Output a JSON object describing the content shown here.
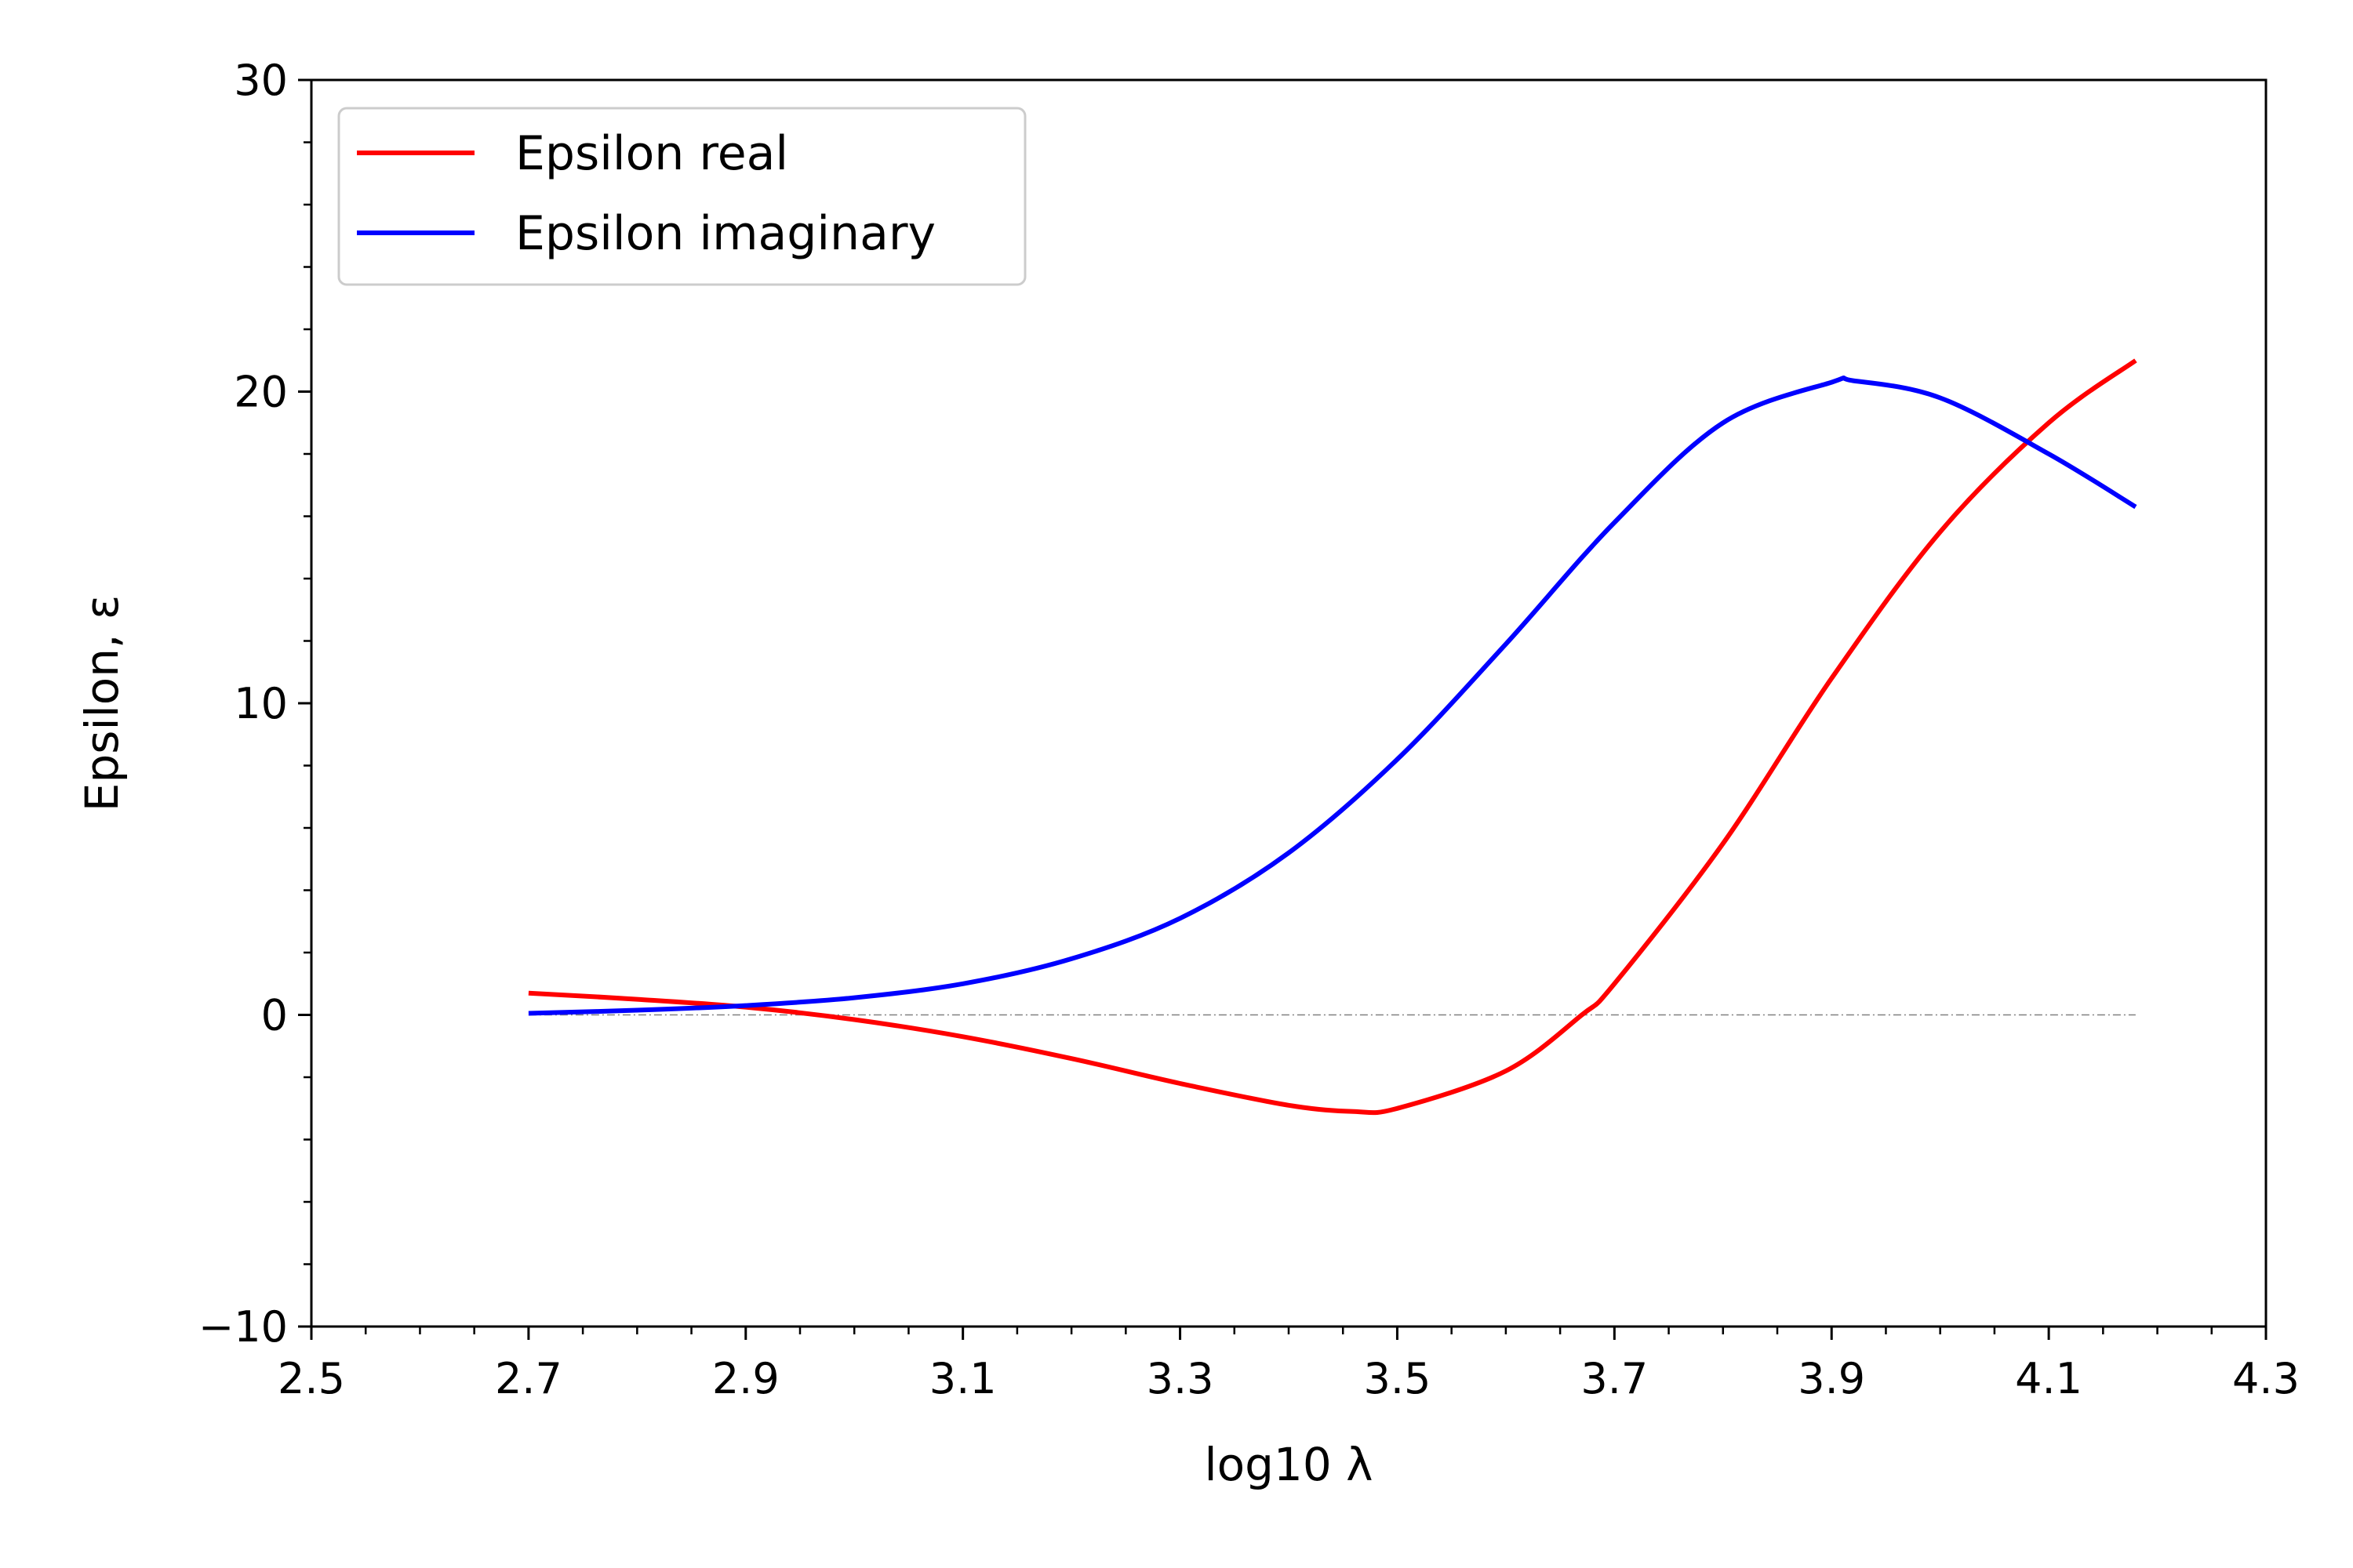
{
  "chart_data": {
    "type": "line",
    "xlabel": "log10 λ",
    "ylabel": "Epsilon, ε",
    "xlim": [
      2.5,
      4.3
    ],
    "ylim": [
      -10,
      30
    ],
    "x_ticks": [
      "2.5",
      "2.7",
      "2.9",
      "3.1",
      "3.3",
      "3.5",
      "3.7",
      "3.9",
      "4.1",
      "4.3"
    ],
    "y_ticks": [
      "−10",
      "0",
      "10",
      "20",
      "30"
    ],
    "grid": false,
    "legend_position": "top-left",
    "zero_line": {
      "y": 0,
      "x": [
        2.7,
        4.18
      ],
      "style": "dash-dot",
      "color": "#808080"
    },
    "series": [
      {
        "name": "Epsilon real",
        "color": "#ff0000",
        "x": [
          2.7,
          2.8,
          2.9,
          3.0,
          3.1,
          3.2,
          3.3,
          3.4,
          3.46,
          3.5,
          3.6,
          3.67,
          3.7,
          3.8,
          3.9,
          4.0,
          4.1,
          4.18
        ],
        "values": [
          0.7,
          0.5,
          0.25,
          -0.15,
          -0.7,
          -1.4,
          -2.2,
          -2.9,
          -3.1,
          -3.0,
          -1.8,
          0.0,
          1.0,
          5.5,
          10.8,
          15.5,
          19.0,
          21.0
        ]
      },
      {
        "name": "Epsilon imaginary",
        "color": "#0000ff",
        "x": [
          2.7,
          2.8,
          2.9,
          3.0,
          3.1,
          3.2,
          3.3,
          3.4,
          3.5,
          3.6,
          3.7,
          3.8,
          3.9,
          3.92,
          4.0,
          4.1,
          4.18
        ],
        "values": [
          0.05,
          0.15,
          0.3,
          0.55,
          1.0,
          1.8,
          3.1,
          5.2,
          8.2,
          11.9,
          15.8,
          19.0,
          20.3,
          20.35,
          19.8,
          18.0,
          16.3
        ]
      }
    ]
  }
}
